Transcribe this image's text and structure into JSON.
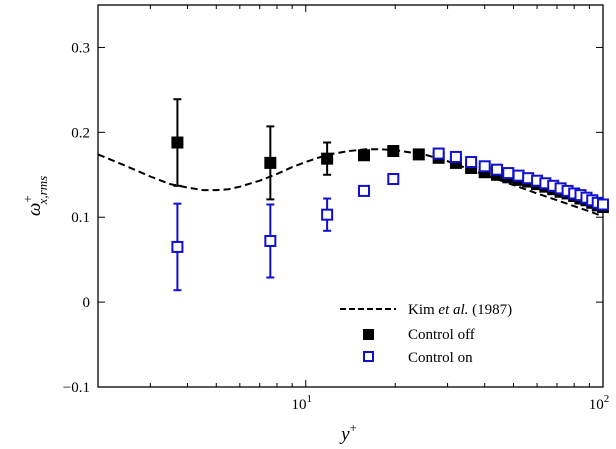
{
  "chart_data": {
    "type": "scatter",
    "xscale": "log",
    "xlim": [
      2,
      100
    ],
    "ylim": [
      -0.1,
      0.35
    ],
    "grid": false,
    "legend_placement": "bottom-right",
    "xlabel": {
      "base": "y",
      "sup": "+"
    },
    "ylabel": {
      "base": "ω",
      "sup": "+",
      "sub": "x,rms"
    },
    "xticks": [
      {
        "value": 10,
        "base": "10",
        "exp": "1"
      },
      {
        "value": 100,
        "base": "10",
        "exp": "2"
      }
    ],
    "yticks": [
      {
        "value": -0.1,
        "label": "−0.1"
      },
      {
        "value": 0,
        "label": "0"
      },
      {
        "value": 0.1,
        "label": "0.1"
      },
      {
        "value": 0.2,
        "label": "0.2"
      },
      {
        "value": 0.3,
        "label": "0.3"
      }
    ],
    "series": [
      {
        "name_parts": [
          "Kim ",
          "et al.",
          " (1987)"
        ],
        "style": "dashed-line",
        "color": "#000000",
        "x": [
          2,
          2.5,
          3,
          3.5,
          4,
          4.5,
          5,
          5.5,
          6,
          7,
          8,
          9,
          10,
          11,
          12,
          14,
          16,
          18,
          20,
          25,
          30,
          40,
          50,
          60,
          70,
          80,
          90,
          100
        ],
        "y": [
          0.174,
          0.16,
          0.148,
          0.139,
          0.135,
          0.132,
          0.132,
          0.133,
          0.136,
          0.143,
          0.151,
          0.159,
          0.165,
          0.17,
          0.174,
          0.178,
          0.18,
          0.18,
          0.179,
          0.174,
          0.166,
          0.15,
          0.138,
          0.128,
          0.12,
          0.113,
          0.107,
          0.101
        ]
      },
      {
        "name": "Control off",
        "style": "filled-square",
        "color": "#000000",
        "x": [
          3.7,
          7.6,
          11.8,
          15.7,
          19.7,
          24,
          28,
          32,
          36,
          40,
          44,
          48,
          52,
          56,
          60,
          64,
          68,
          72,
          76,
          80,
          84,
          88,
          92,
          96,
          100
        ],
        "y": [
          0.188,
          0.164,
          0.169,
          0.173,
          0.178,
          0.174,
          0.17,
          0.164,
          0.158,
          0.153,
          0.15,
          0.147,
          0.144,
          0.142,
          0.139,
          0.136,
          0.133,
          0.13,
          0.128,
          0.125,
          0.122,
          0.12,
          0.117,
          0.114,
          0.112
        ],
        "error": [
          0.051,
          0.043,
          0.019,
          null,
          null,
          null,
          null,
          null,
          null,
          null,
          null,
          null,
          null,
          null,
          null,
          null,
          null,
          null,
          null,
          null,
          null,
          null,
          null,
          null,
          null
        ]
      },
      {
        "name": "Control on",
        "style": "open-square",
        "color": "#1010d0",
        "x": [
          3.7,
          7.6,
          11.8,
          15.7,
          19.7,
          28,
          32,
          36,
          40,
          44,
          48,
          52,
          56,
          60,
          64,
          68,
          72,
          76,
          80,
          84,
          88,
          92,
          96,
          100
        ],
        "y": [
          0.065,
          0.072,
          0.103,
          0.131,
          0.145,
          0.175,
          0.171,
          0.165,
          0.16,
          0.156,
          0.152,
          0.149,
          0.146,
          0.143,
          0.14,
          0.137,
          0.134,
          0.131,
          0.128,
          0.126,
          0.123,
          0.12,
          0.117,
          0.115
        ],
        "error": [
          0.051,
          0.043,
          0.019,
          null,
          null,
          null,
          null,
          null,
          null,
          null,
          null,
          null,
          null,
          null,
          null,
          null,
          null,
          null,
          null,
          null,
          null,
          null,
          null,
          null
        ]
      }
    ]
  }
}
